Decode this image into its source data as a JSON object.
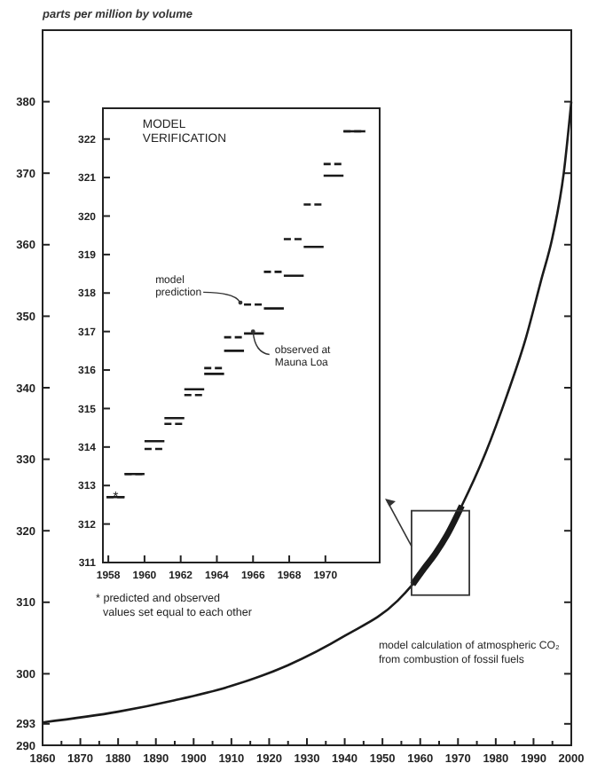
{
  "chart_data": [
    {
      "type": "line",
      "ylabel": "parts per million by volume",
      "xlim": [
        1860,
        2000
      ],
      "ylim": [
        290,
        390
      ],
      "xticks": [
        1860,
        {
          "value": 1865,
          "label": null
        },
        1870,
        {
          "value": 1875,
          "label": null
        },
        1880,
        {
          "value": 1885,
          "label": null
        },
        1890,
        {
          "value": 1895,
          "label": null
        },
        1900,
        {
          "value": 1905,
          "label": null
        },
        1910,
        {
          "value": 1915,
          "label": null
        },
        1920,
        {
          "value": 1925,
          "label": null
        },
        1930,
        {
          "value": 1935,
          "label": null
        },
        1940,
        {
          "value": 1945,
          "label": null
        },
        1950,
        {
          "value": 1955,
          "label": null
        },
        1960,
        {
          "value": 1965,
          "label": null
        },
        1970,
        {
          "value": 1975,
          "label": null
        },
        1980,
        {
          "value": 1985,
          "label": null
        },
        1990,
        {
          "value": 1995,
          "label": null
        },
        2000
      ],
      "yticks": [
        290,
        293,
        300,
        310,
        320,
        330,
        340,
        350,
        360,
        370,
        380
      ],
      "grid": false,
      "series": [
        {
          "color": "#1a1a1a",
          "x": [
            1860,
            1880,
            1895,
            1910,
            1925,
            1940,
            1954,
            1958,
            1965,
            1971,
            1977,
            1983,
            1988,
            1992,
            1995,
            1998,
            2000
          ],
          "values": [
            293.2,
            294.7,
            296.3,
            298.3,
            301.2,
            305.3,
            310.2,
            312.5,
            317.5,
            323.5,
            330.5,
            339,
            347,
            355,
            361,
            370,
            380
          ]
        },
        {
          "color": "#1a1a1a",
          "x": [
            1958,
            1961,
            1964,
            1967,
            1971
          ],
          "values": [
            312.5,
            314.7,
            316.8,
            319.3,
            323.5
          ]
        }
      ],
      "annotations": [
        "model calculation of atmospheric CO₂",
        "from combustion of fossil fuels"
      ]
    },
    {
      "type": "line",
      "title": "MODEL VERIFICATION",
      "xlim": [
        1957.7,
        1973
      ],
      "ylim": [
        311,
        322.8
      ],
      "xticks": [
        1958,
        1960,
        1962,
        1964,
        1966,
        1968,
        1970
      ],
      "yticks": [
        311,
        312,
        313,
        314,
        315,
        316,
        317,
        318,
        319,
        320,
        321,
        322
      ],
      "grid": false,
      "series": [
        {
          "name": "model prediction",
          "color": "#1a1a1a",
          "line_style": "dashed",
          "x": [
            1957.9,
            1958.9,
            1958.9,
            1960.0,
            1960.0,
            1961.1,
            1961.1,
            1962.2,
            1962.2,
            1963.3,
            1963.3,
            1964.4,
            1964.4,
            1965.5,
            1965.5,
            1966.6,
            1966.6,
            1967.7,
            1967.7,
            1968.8,
            1968.8,
            1969.9,
            1969.9,
            1971.0,
            1971.0,
            1972.2
          ],
          "values": [
            312.7,
            312.7,
            313.3,
            313.3,
            313.95,
            313.95,
            314.6,
            314.6,
            315.35,
            315.35,
            316.05,
            316.05,
            316.85,
            316.85,
            317.7,
            317.7,
            318.55,
            318.55,
            319.4,
            319.4,
            320.3,
            320.3,
            321.35,
            321.35,
            322.2,
            322.2
          ]
        },
        {
          "name": "observed at Mauna Loa",
          "color": "#1a1a1a",
          "line_style": "solid",
          "x": [
            1957.9,
            1958.9,
            1958.9,
            1960.0,
            1960.0,
            1961.1,
            1961.1,
            1962.2,
            1962.2,
            1963.3,
            1963.3,
            1964.4,
            1964.4,
            1965.5,
            1965.5,
            1966.6,
            1966.6,
            1967.7,
            1967.7,
            1968.8,
            1968.8,
            1969.9,
            1969.9,
            1971.0,
            1971.0,
            1972.2
          ],
          "values": [
            312.7,
            312.7,
            313.3,
            313.3,
            314.15,
            314.15,
            314.75,
            314.75,
            315.5,
            315.5,
            315.9,
            315.9,
            316.5,
            316.5,
            316.95,
            316.95,
            317.6,
            317.6,
            318.45,
            318.45,
            319.2,
            319.2,
            321.05,
            321.05,
            322.2,
            322.2
          ]
        }
      ],
      "annotations": [
        {
          "text": "*",
          "x": 1958.4,
          "y": 312.7
        },
        "* predicted and observed",
        "values set equal to each other"
      ]
    }
  ]
}
